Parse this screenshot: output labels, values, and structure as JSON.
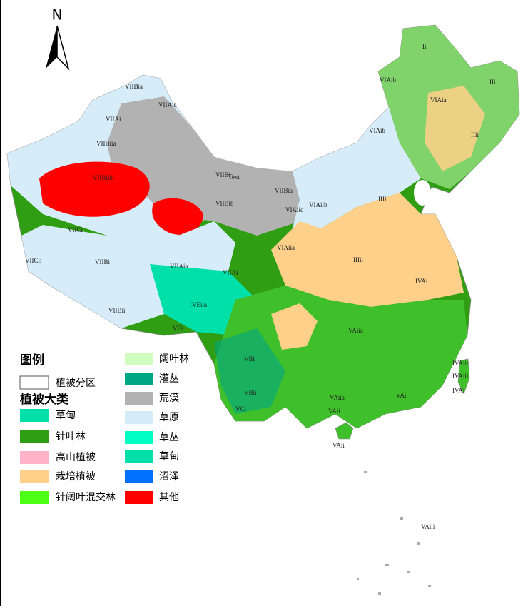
{
  "north": "N",
  "legend": {
    "title": "图例",
    "zoning": "植被分区",
    "subtitle": "植被大类",
    "items": [
      {
        "label": "草甸",
        "color": "#00e0a8"
      },
      {
        "label": "针叶林",
        "color": "#2f9e13"
      },
      {
        "label": "高山植被",
        "color": "#ffb3c8"
      },
      {
        "label": "栽培植被",
        "color": "#ffd08a"
      },
      {
        "label": "针阔叶混交林",
        "color": "#4cff14"
      },
      {
        "label": "阔叶林",
        "color": "#d0ffbf"
      },
      {
        "label": "灌丛",
        "color": "#00a884"
      },
      {
        "label": "荒漠",
        "color": "#b2b2b2"
      },
      {
        "label": "草原",
        "color": "#d6ecf8"
      },
      {
        "label": "草丛",
        "color": "#00ffc5"
      },
      {
        "label": "草甸",
        "color": "#00e0a8"
      },
      {
        "label": "沼泽",
        "color": "#0070ff"
      },
      {
        "label": "其他",
        "color": "#ff0000"
      }
    ]
  },
  "region_labels": [
    "VIIBia",
    "VIIAic",
    "VIIAi",
    "VIIBiia",
    "VIIBiib",
    "VIIBi",
    "Text",
    "VIIBib",
    "VIIBia",
    "VIAiic",
    "VIAiib",
    "VIAiia",
    "VIICi",
    "VIICii",
    "VIIBi",
    "VIIAia",
    "VIIAi",
    "VIIBii",
    "IVEiia",
    "VEi",
    "VIAib",
    "Ii",
    "IIi",
    "VIAia",
    "VIAib",
    "IIii",
    "IIIi",
    "IIIii",
    "IVAi",
    "IVAiia",
    "VBi",
    "VBii",
    "VCi",
    "VAiia",
    "VAi",
    "VAii",
    "VAii",
    "IVAiib",
    "IVAiii",
    "IVAi",
    "VAiii"
  ]
}
